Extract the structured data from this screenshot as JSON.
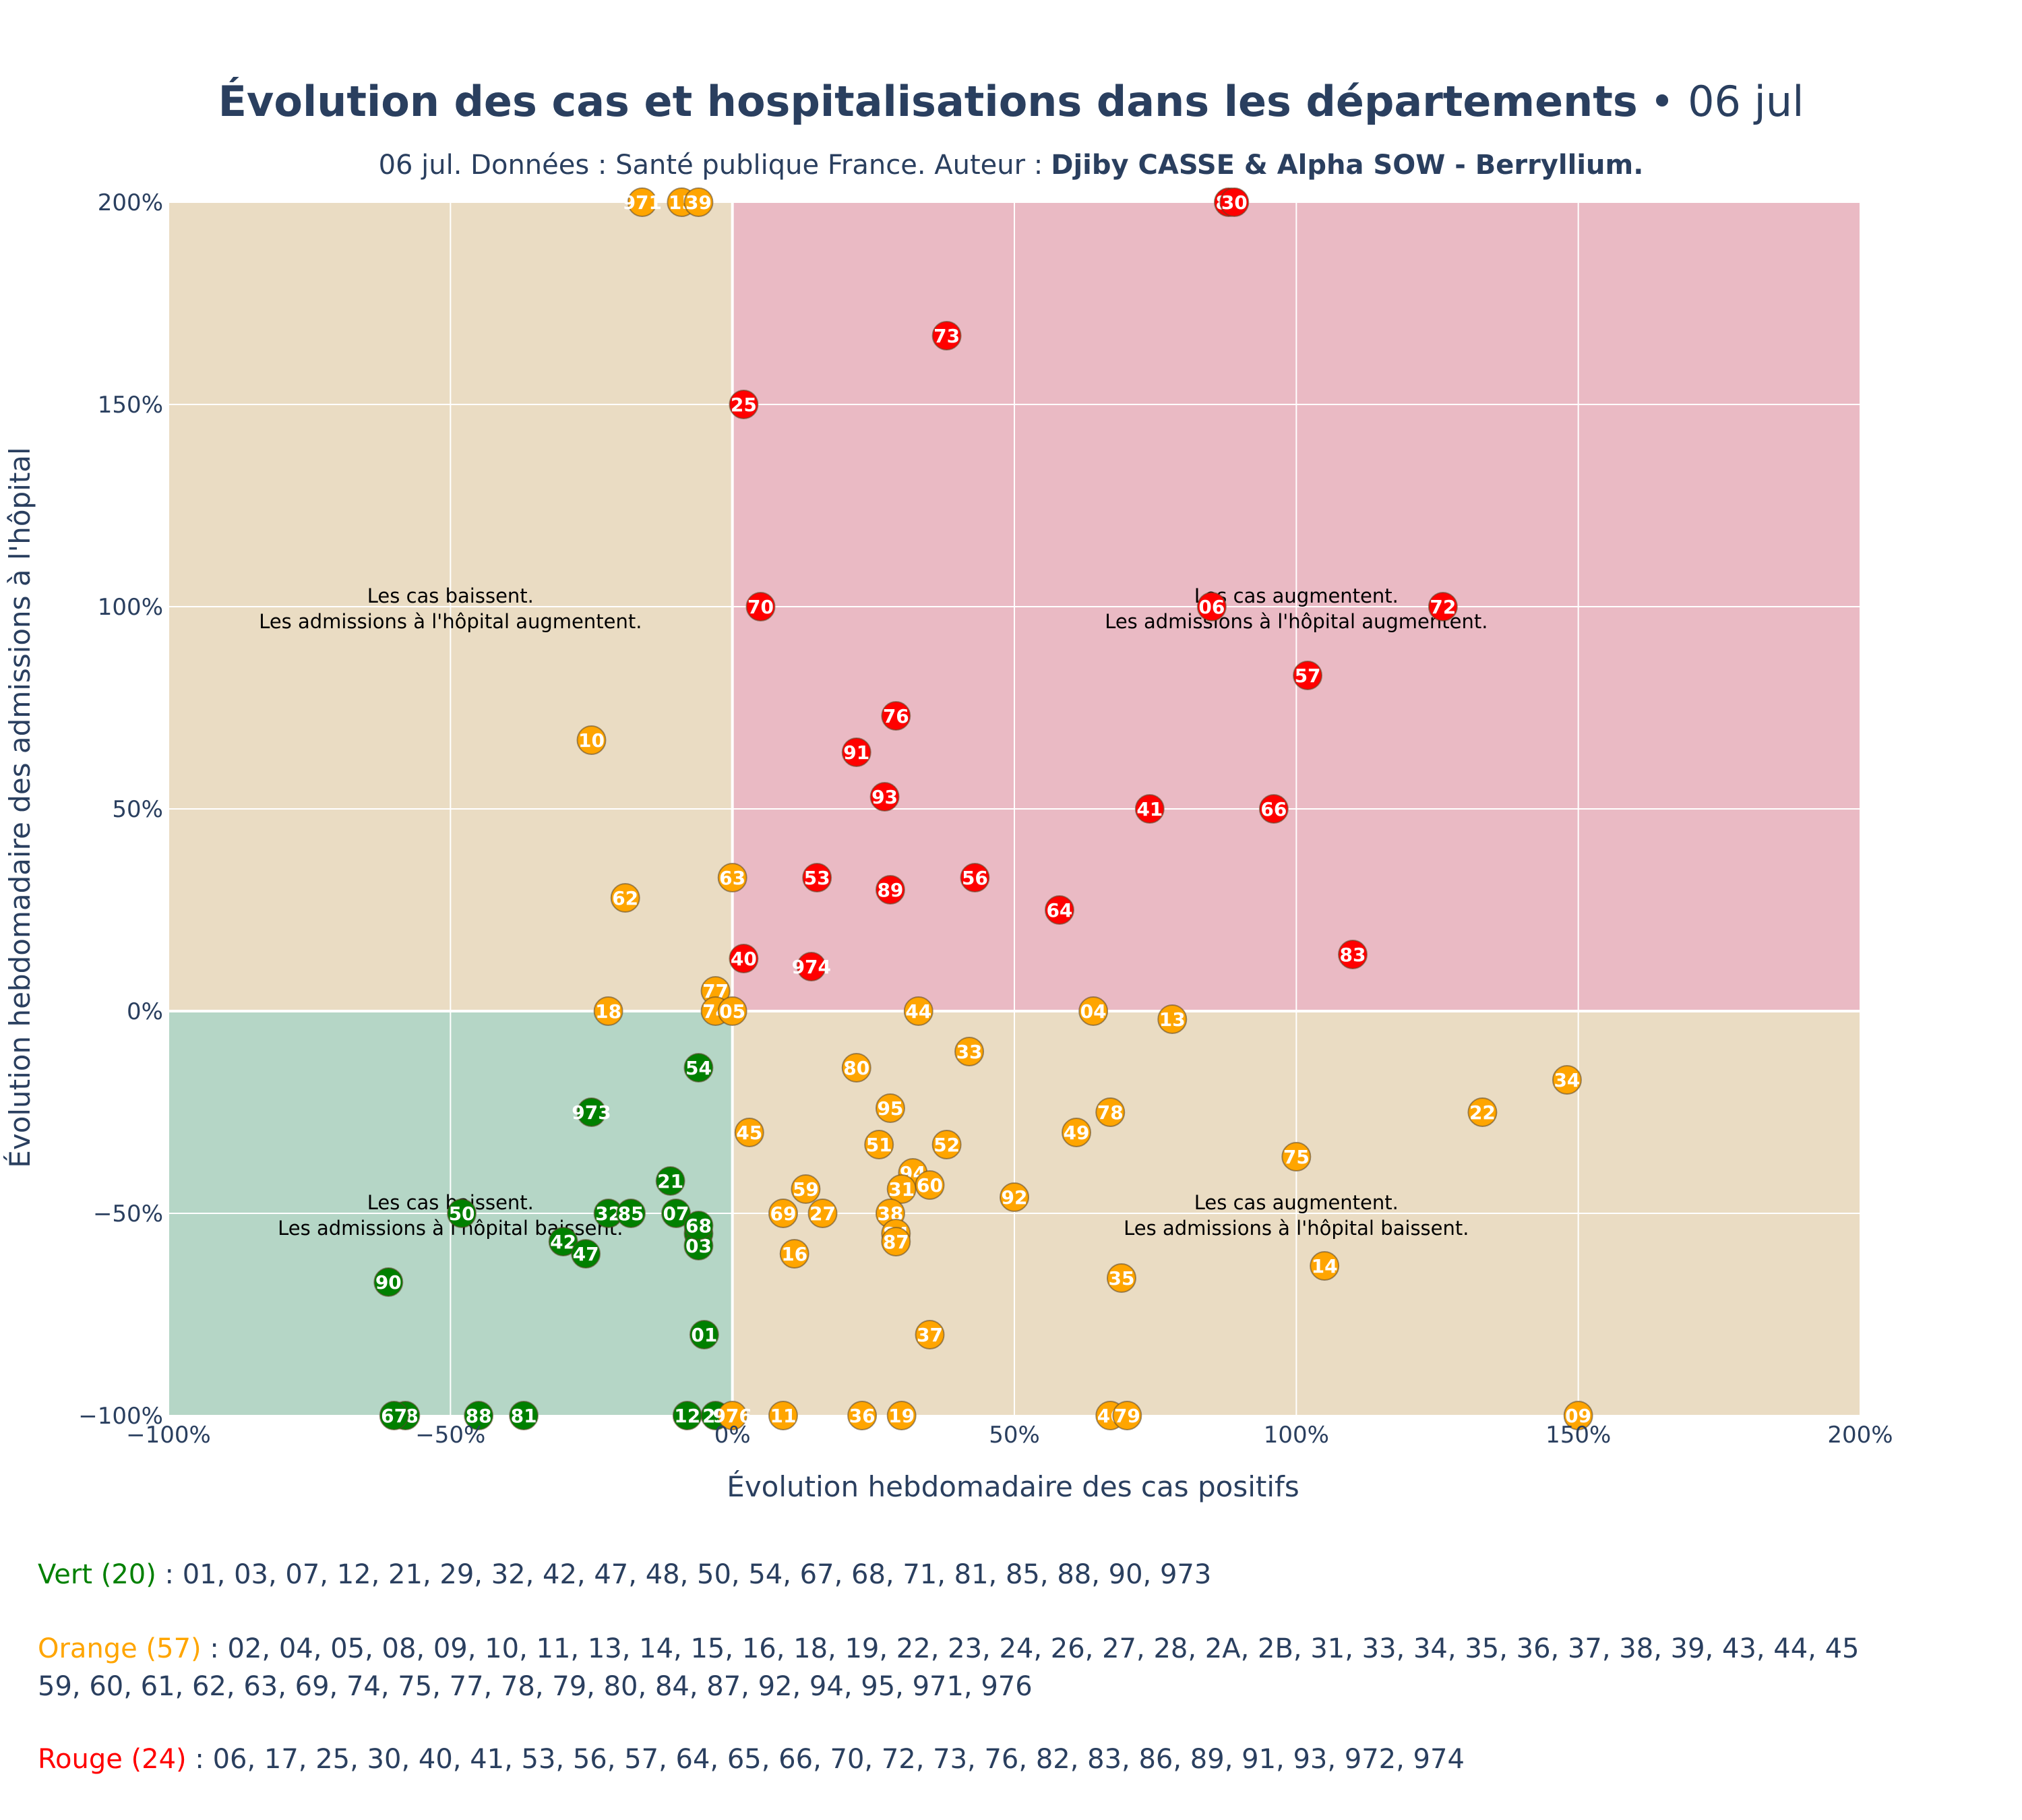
{
  "chart_data": {
    "type": "scatter",
    "title": "Évolution des cas et hospitalisations dans les départements",
    "title_date": "• 06 jul",
    "subtitle": "06 jul. Données : Santé publique France. Auteur :",
    "subtitle_author": "Djiby CASSE & Alpha SOW - Berryllium.",
    "xlabel": "Évolution hebdomadaire des cas positifs",
    "ylabel": "Évolution hebdomadaire des admissions à l'hôpital",
    "xlim": [
      -100,
      200
    ],
    "ylim": [
      -100,
      200
    ],
    "x_ticks": [
      -100,
      -50,
      0,
      50,
      100,
      150,
      200
    ],
    "y_ticks": [
      -100,
      -50,
      0,
      50,
      100,
      150,
      200
    ],
    "x_tick_labels": [
      "−100%",
      "−50%",
      "0%",
      "50%",
      "100%",
      "150%",
      "200%"
    ],
    "y_tick_labels": [
      "−100%",
      "−50%",
      "0%",
      "50%",
      "100%",
      "150%",
      "200%"
    ],
    "grid": true,
    "colors": {
      "Vert": "#008000",
      "Orange": "#FFA500",
      "Rouge": "#FF0000",
      "zone_green": "#b5d6c6",
      "zone_orange": "#eadcc3",
      "zone_red": "#eabac4"
    },
    "annotations": [
      {
        "x": -50,
        "y": 100,
        "lines": [
          "Les cas baissent.",
          "Les admissions à l'hôpital augmentent."
        ]
      },
      {
        "x": 100,
        "y": 100,
        "lines": [
          "Les cas augmentent.",
          "Les admissions à l'hôpital augmentent."
        ]
      },
      {
        "x": -50,
        "y": -50,
        "lines": [
          "Les cas baissent.",
          "Les admissions à l'hôpital baissent."
        ]
      },
      {
        "x": 100,
        "y": -50,
        "lines": [
          "Les cas augmentent.",
          "Les admissions à l'hôpital baissent."
        ]
      }
    ],
    "points": [
      {
        "dep": "48",
        "x": -58,
        "y": -100,
        "c": "Vert"
      },
      {
        "dep": "88",
        "x": -45,
        "y": -100,
        "c": "Vert"
      },
      {
        "dep": "81",
        "x": -37,
        "y": -100,
        "c": "Vert"
      },
      {
        "dep": "90",
        "x": -61,
        "y": -67,
        "c": "Vert"
      },
      {
        "dep": "50",
        "x": -48,
        "y": -50,
        "c": "Vert"
      },
      {
        "dep": "42",
        "x": -30,
        "y": -57,
        "c": "Vert"
      },
      {
        "dep": "47",
        "x": -26,
        "y": -60,
        "c": "Vert"
      },
      {
        "dep": "973",
        "x": -25,
        "y": -25,
        "c": "Vert"
      },
      {
        "dep": "32",
        "x": -22,
        "y": -50,
        "c": "Vert"
      },
      {
        "dep": "85",
        "x": -18,
        "y": -50,
        "c": "Vert"
      },
      {
        "dep": "21",
        "x": -11,
        "y": -42,
        "c": "Vert"
      },
      {
        "dep": "07",
        "x": -10,
        "y": -50,
        "c": "Vert"
      },
      {
        "dep": "54",
        "x": -6,
        "y": -14,
        "c": "Vert"
      },
      {
        "dep": "71",
        "x": -6,
        "y": -55,
        "c": "Vert"
      },
      {
        "dep": "03",
        "x": -6,
        "y": -58,
        "c": "Vert"
      },
      {
        "dep": "68",
        "x": -6,
        "y": -53,
        "c": "Vert"
      },
      {
        "dep": "01",
        "x": -5,
        "y": -80,
        "c": "Vert"
      },
      {
        "dep": "29",
        "x": -3,
        "y": -100,
        "c": "Vert"
      },
      {
        "dep": "12",
        "x": -8,
        "y": -100,
        "c": "Vert"
      },
      {
        "dep": "67",
        "x": -60,
        "y": -100,
        "c": "Vert"
      },
      {
        "dep": "971",
        "x": -16,
        "y": 200,
        "c": "Orange"
      },
      {
        "dep": "15",
        "x": -9,
        "y": 200,
        "c": "Orange"
      },
      {
        "dep": "39",
        "x": -6,
        "y": 200,
        "c": "Orange"
      },
      {
        "dep": "10",
        "x": -25,
        "y": 67,
        "c": "Orange"
      },
      {
        "dep": "62",
        "x": -19,
        "y": 28,
        "c": "Orange"
      },
      {
        "dep": "63",
        "x": 0,
        "y": 33,
        "c": "Orange"
      },
      {
        "dep": "18",
        "x": -22,
        "y": 0,
        "c": "Orange"
      },
      {
        "dep": "77",
        "x": -3,
        "y": 5,
        "c": "Orange"
      },
      {
        "dep": "74",
        "x": -3,
        "y": 0,
        "c": "Orange"
      },
      {
        "dep": "05",
        "x": 0,
        "y": 0,
        "c": "Orange"
      },
      {
        "dep": "44",
        "x": 33,
        "y": 0,
        "c": "Orange"
      },
      {
        "dep": "04",
        "x": 64,
        "y": 0,
        "c": "Orange"
      },
      {
        "dep": "13",
        "x": 78,
        "y": -2,
        "c": "Orange"
      },
      {
        "dep": "33",
        "x": 42,
        "y": -10,
        "c": "Orange"
      },
      {
        "dep": "80",
        "x": 22,
        "y": -14,
        "c": "Orange"
      },
      {
        "dep": "34",
        "x": 148,
        "y": -17,
        "c": "Orange"
      },
      {
        "dep": "95",
        "x": 28,
        "y": -24,
        "c": "Orange"
      },
      {
        "dep": "78",
        "x": 67,
        "y": -25,
        "c": "Orange"
      },
      {
        "dep": "22",
        "x": 133,
        "y": -25,
        "c": "Orange"
      },
      {
        "dep": "45",
        "x": 3,
        "y": -30,
        "c": "Orange"
      },
      {
        "dep": "49",
        "x": 61,
        "y": -30,
        "c": "Orange"
      },
      {
        "dep": "51",
        "x": 26,
        "y": -33,
        "c": "Orange"
      },
      {
        "dep": "52",
        "x": 38,
        "y": -33,
        "c": "Orange"
      },
      {
        "dep": "75",
        "x": 100,
        "y": -36,
        "c": "Orange"
      },
      {
        "dep": "94",
        "x": 32,
        "y": -40,
        "c": "Orange"
      },
      {
        "dep": "59",
        "x": 13,
        "y": -44,
        "c": "Orange"
      },
      {
        "dep": "31",
        "x": 30,
        "y": -44,
        "c": "Orange"
      },
      {
        "dep": "60",
        "x": 35,
        "y": -43,
        "c": "Orange"
      },
      {
        "dep": "92",
        "x": 50,
        "y": -46,
        "c": "Orange"
      },
      {
        "dep": "69",
        "x": 9,
        "y": -50,
        "c": "Orange"
      },
      {
        "dep": "27",
        "x": 16,
        "y": -50,
        "c": "Orange"
      },
      {
        "dep": "38",
        "x": 28,
        "y": -50,
        "c": "Orange"
      },
      {
        "dep": "84",
        "x": 29,
        "y": -55,
        "c": "Orange"
      },
      {
        "dep": "87",
        "x": 29,
        "y": -57,
        "c": "Orange"
      },
      {
        "dep": "16",
        "x": 11,
        "y": -60,
        "c": "Orange"
      },
      {
        "dep": "14",
        "x": 105,
        "y": -63,
        "c": "Orange"
      },
      {
        "dep": "35",
        "x": 69,
        "y": -66,
        "c": "Orange"
      },
      {
        "dep": "37",
        "x": 35,
        "y": -80,
        "c": "Orange"
      },
      {
        "dep": "976",
        "x": 0,
        "y": -100,
        "c": "Orange"
      },
      {
        "dep": "11",
        "x": 9,
        "y": -100,
        "c": "Orange"
      },
      {
        "dep": "36",
        "x": 23,
        "y": -100,
        "c": "Orange"
      },
      {
        "dep": "19",
        "x": 30,
        "y": -100,
        "c": "Orange"
      },
      {
        "dep": "46",
        "x": 67,
        "y": -100,
        "c": "Orange"
      },
      {
        "dep": "79",
        "x": 70,
        "y": -100,
        "c": "Orange"
      },
      {
        "dep": "09",
        "x": 150,
        "y": -100,
        "c": "Orange"
      },
      {
        "dep": "86",
        "x": 88,
        "y": 200,
        "c": "Rouge"
      },
      {
        "dep": "30",
        "x": 89,
        "y": 200,
        "c": "Rouge"
      },
      {
        "dep": "73",
        "x": 38,
        "y": 167,
        "c": "Rouge"
      },
      {
        "dep": "25",
        "x": 2,
        "y": 150,
        "c": "Rouge"
      },
      {
        "dep": "70",
        "x": 5,
        "y": 100,
        "c": "Rouge"
      },
      {
        "dep": "06",
        "x": 85,
        "y": 100,
        "c": "Rouge"
      },
      {
        "dep": "72",
        "x": 126,
        "y": 100,
        "c": "Rouge"
      },
      {
        "dep": "57",
        "x": 102,
        "y": 83,
        "c": "Rouge"
      },
      {
        "dep": "76",
        "x": 29,
        "y": 73,
        "c": "Rouge"
      },
      {
        "dep": "91",
        "x": 22,
        "y": 64,
        "c": "Rouge"
      },
      {
        "dep": "93",
        "x": 27,
        "y": 53,
        "c": "Rouge"
      },
      {
        "dep": "41",
        "x": 74,
        "y": 50,
        "c": "Rouge"
      },
      {
        "dep": "66",
        "x": 96,
        "y": 50,
        "c": "Rouge"
      },
      {
        "dep": "53",
        "x": 15,
        "y": 33,
        "c": "Rouge"
      },
      {
        "dep": "56",
        "x": 43,
        "y": 33,
        "c": "Rouge"
      },
      {
        "dep": "89",
        "x": 28,
        "y": 30,
        "c": "Rouge"
      },
      {
        "dep": "64",
        "x": 58,
        "y": 25,
        "c": "Rouge"
      },
      {
        "dep": "83",
        "x": 110,
        "y": 14,
        "c": "Rouge"
      },
      {
        "dep": "40",
        "x": 2,
        "y": 13,
        "c": "Rouge"
      },
      {
        "dep": "974",
        "x": 14,
        "y": 11,
        "c": "Rouge"
      }
    ]
  },
  "legend": {
    "vert": {
      "label": "Vert (20)",
      "list": " : 01, 03, 07, 12, 21, 29, 32, 42, 47, 48, 50, 54, 67, 68, 71, 81, 85, 88, 90, 973"
    },
    "orange": {
      "label": "Orange (57)",
      "list": " : 02, 04, 05, 08, 09, 10, 11, 13, 14, 15, 16, 18, 19, 22, 23, 24, 26, 27, 28, 2A, 2B, 31, 33, 34, 35, 36, 37, 38, 39, 43, 44, 45",
      "list2": "59, 60, 61, 62, 63, 69, 74, 75, 77, 78, 79, 80, 84, 87, 92, 94, 95, 971, 976"
    },
    "rouge": {
      "label": "Rouge (24)",
      "list": " : 06, 17, 25, 30, 40, 41, 53, 56, 57, 64, 65, 66, 70, 72, 73, 76, 82, 83, 86, 89, 91, 93, 972, 974"
    }
  }
}
